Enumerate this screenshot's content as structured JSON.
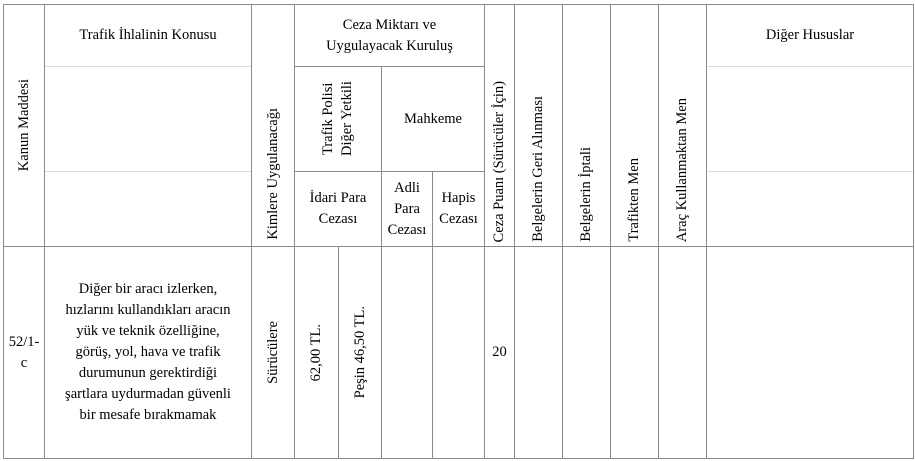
{
  "header": {
    "kanun_maddesi": "Kanun Maddesi",
    "konu": "Trafik İhlalinin Konusu",
    "kimlere": "Kimlere Uygulanacağı",
    "ceza_miktari": "Ceza Miktarı ve Uygulayacak Kuruluş",
    "trafik_polisi": "Trafik Polisi Diğer Yetkili",
    "mahkeme": "Mahkeme",
    "idari": "İdari Para Cezası",
    "adli": "Adli Para Cezası",
    "hapis": "Hapis Cezası",
    "ceza_puani": "Ceza Puanı (Sürücüler İçin)",
    "geri_alinmasi": "Belgelerin Geri Alınması",
    "iptali": "Belgelerin İptali",
    "trafikten_men": "Trafikten Men",
    "arac_men": "Araç Kullanmaktan Men",
    "diger": "Diğer Hususlar"
  },
  "row": {
    "madde": "52/1-c",
    "konu": "Diğer bir aracı izlerken, hızlarını kullandıkları aracın yük ve teknik özelliğine, görüş, yol, hava ve trafik durumunun gerektirdiği şartlara uydurmadan güvenli bir mesafe bırakmamak",
    "kimlere": "Sürücülere",
    "idari_1": "62,00 TL.",
    "idari_2": "Peşin 46,50 TL.",
    "ceza_puani": "20"
  }
}
